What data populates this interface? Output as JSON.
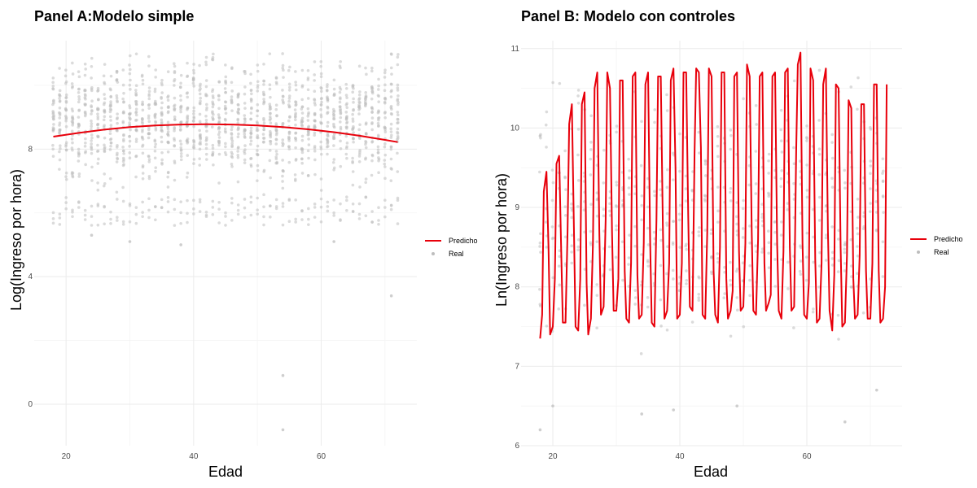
{
  "chart_data": [
    {
      "type": "scatter",
      "title": "Panel A:Modelo simple",
      "xlabel": "Edad",
      "ylabel": "Log(Ingreso por hora)",
      "xlim": [
        15,
        75
      ],
      "ylim": [
        -1.3,
        11.4
      ],
      "xticks": [
        "20",
        "40",
        "60"
      ],
      "yticks": [
        "0",
        "4",
        "8"
      ],
      "grid": true,
      "legend_position": "right",
      "series": [
        {
          "name": "Predicho",
          "kind": "line",
          "color": "#e8000b",
          "x": [
            18,
            22,
            26,
            30,
            34,
            38,
            42,
            46,
            50,
            54,
            58,
            62,
            66,
            70,
            72
          ],
          "y": [
            8.39,
            8.51,
            8.61,
            8.69,
            8.74,
            8.77,
            8.78,
            8.77,
            8.74,
            8.69,
            8.62,
            8.53,
            8.42,
            8.29,
            8.22
          ]
        },
        {
          "name": "Real",
          "kind": "points",
          "color": "#bdbdbd",
          "x_range": [
            18,
            72
          ],
          "y_dense_range": [
            6.3,
            11.1
          ],
          "outliers": [
            {
              "x": 30,
              "y": 5.1
            },
            {
              "x": 38,
              "y": 5.0
            },
            {
              "x": 54,
              "y": 0.9
            },
            {
              "x": 54,
              "y": -0.8
            },
            {
              "x": 71,
              "y": 3.4
            },
            {
              "x": 62,
              "y": 5.1
            },
            {
              "x": 24,
              "y": 5.3
            }
          ]
        }
      ]
    },
    {
      "type": "scatter",
      "title": "Panel B: Modelo con controles",
      "xlabel": "Edad",
      "ylabel": "Ln(Ingreso por hora)",
      "xlim": [
        15,
        75
      ],
      "ylim": [
        6.0,
        11.1
      ],
      "xticks": [
        "20",
        "40",
        "60"
      ],
      "yticks": [
        "6",
        "7",
        "8",
        "9",
        "10",
        "11"
      ],
      "grid": true,
      "legend_position": "right",
      "series": [
        {
          "name": "Predicho",
          "kind": "line",
          "color": "#e8000b",
          "x": [
            18,
            19,
            20,
            21,
            22,
            23,
            24,
            25,
            26,
            27,
            28,
            29,
            30,
            31,
            32,
            33,
            34,
            35,
            36,
            37,
            38,
            39,
            40,
            41,
            42,
            43,
            44,
            45,
            46,
            47,
            48,
            49,
            50,
            51,
            52,
            53,
            54,
            55,
            56,
            57,
            58,
            59,
            60,
            61,
            62,
            63,
            64,
            65,
            66,
            67,
            68,
            69,
            70,
            71,
            72
          ],
          "y_min": [
            7.35,
            7.4,
            7.5,
            7.55,
            7.55,
            7.5,
            7.45,
            7.4,
            7.6,
            7.65,
            7.75,
            7.7,
            7.7,
            7.6,
            7.55,
            7.6,
            7.65,
            7.55,
            7.5,
            7.6,
            7.7,
            7.6,
            7.65,
            7.75,
            7.7,
            7.65,
            7.6,
            7.65,
            7.55,
            7.6,
            7.7,
            7.7,
            7.75,
            7.7,
            7.65,
            7.7,
            7.8,
            7.7,
            7.6,
            7.7,
            7.75,
            7.65,
            7.6,
            7.55,
            7.6,
            7.7,
            7.45,
            7.5,
            7.55,
            7.6,
            7.65,
            7.6,
            7.6,
            7.55,
            7.6
          ],
          "y_max": [
            9.2,
            9.45,
            9.55,
            9.65,
            10.05,
            10.3,
            10.3,
            10.45,
            10.5,
            10.7,
            10.7,
            10.5,
            10.6,
            10.6,
            10.65,
            10.7,
            10.55,
            10.7,
            10.65,
            10.65,
            10.6,
            10.75,
            10.7,
            10.7,
            10.75,
            10.7,
            10.75,
            10.65,
            10.7,
            10.7,
            10.65,
            10.7,
            10.8,
            10.65,
            10.65,
            10.7,
            10.65,
            10.7,
            10.7,
            10.75,
            10.8,
            10.95,
            10.75,
            10.6,
            10.55,
            10.75,
            10.55,
            10.5,
            10.35,
            10.25,
            10.3,
            10.3,
            10.55,
            10.55,
            10.55
          ],
          "y_mid": [
            7.65,
            8.5,
            8.1,
            8.45,
            8.7,
            8.75,
            8.1,
            8.05,
            8.55,
            8.7,
            8.85,
            8.7,
            8.1,
            8.2,
            8.3,
            8.15,
            8.55,
            8.6,
            8.85,
            8.8,
            8.3,
            9.5,
            8.3,
            8.9,
            9.7,
            9.75,
            8.7,
            8.2,
            8.5,
            8.1,
            7.95,
            8.45,
            8.55,
            8.7,
            8.6,
            8.3,
            7.9,
            8.55,
            8.45,
            8.5,
            9.7,
            8.55,
            8.05,
            8.35,
            8.3,
            8.7,
            8.15,
            8.5,
            8.4,
            8.1,
            8.4,
            8.2,
            8.3,
            8.2,
            8.0
          ]
        },
        {
          "name": "Real",
          "kind": "points",
          "color": "#bdbdbd",
          "x_range": [
            18,
            72
          ],
          "y_dense_range": [
            6.9,
            11.0
          ],
          "outliers": [
            {
              "x": 18,
              "y": 6.2
            },
            {
              "x": 20,
              "y": 6.5
            },
            {
              "x": 39,
              "y": 6.45
            },
            {
              "x": 34,
              "y": 6.4
            },
            {
              "x": 49,
              "y": 6.5
            },
            {
              "x": 66,
              "y": 6.3
            },
            {
              "x": 71,
              "y": 6.7
            },
            {
              "x": 18,
              "y": 9.9
            }
          ]
        }
      ]
    }
  ]
}
